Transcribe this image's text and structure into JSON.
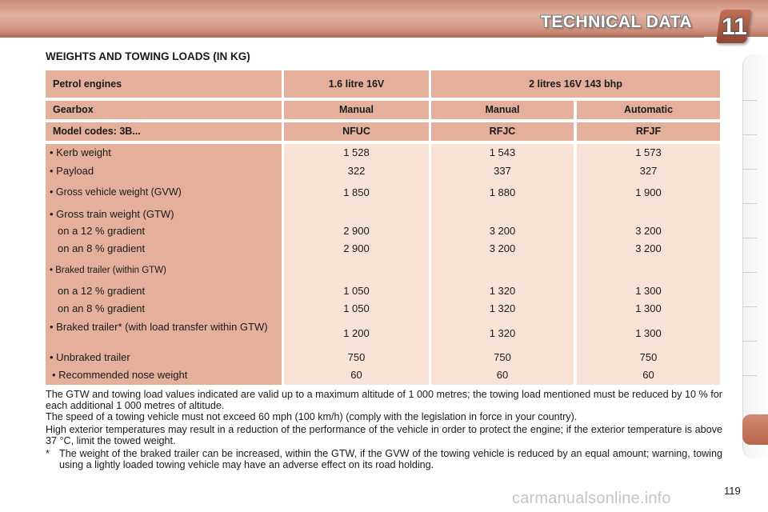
{
  "header": {
    "title": "TECHNICAL DATA",
    "chapter": "11"
  },
  "section_title": "WEIGHTS AND TOWING LOADS (IN KG)",
  "table": {
    "engine_row": {
      "label": "Petrol engines",
      "engine_a": "1.6 litre 16V",
      "engine_b": "2 litres 16V 143 bhp"
    },
    "gearbox_row": {
      "label": "Gearbox",
      "values": [
        "Manual",
        "Manual",
        "Automatic"
      ]
    },
    "model_row": {
      "label": "Model codes: 3B...",
      "values": [
        "NFUC",
        "RFJC",
        "RFJF"
      ]
    },
    "rows": [
      {
        "label": "• Kerb weight",
        "values": [
          "1 528",
          "1 543",
          "1 573"
        ]
      },
      {
        "label": "• Payload",
        "values": [
          "322",
          "337",
          "327"
        ]
      },
      {
        "label": "• Gross vehicle weight (GVW)",
        "values": [
          "1 850",
          "1 880",
          "1 900"
        ]
      },
      {
        "label": "• Gross train weight (GTW)",
        "values": [
          "",
          "",
          ""
        ]
      },
      {
        "label": "on a 12 % gradient",
        "values": [
          "2 900",
          "3 200",
          "3 200"
        ]
      },
      {
        "label": "on an 8 % gradient",
        "values": [
          "2 900",
          "3 200",
          "3 200"
        ]
      },
      {
        "label": "• Braked trailer (within GTW)",
        "values": [
          "",
          "",
          ""
        ]
      },
      {
        "label": "on a 12 % gradient",
        "values": [
          "1 050",
          "1 320",
          "1 300"
        ]
      },
      {
        "label": "on an 8 % gradient",
        "values": [
          "1 050",
          "1 320",
          "1 300"
        ]
      },
      {
        "label": "• Braked trailer* (with load transfer within GTW)",
        "values": [
          "1 200",
          "1 320",
          "1 300"
        ]
      },
      {
        "label": "• Unbraked trailer",
        "values": [
          "750",
          "750",
          "750"
        ]
      },
      {
        "label": "• Recommended nose weight",
        "values": [
          "60",
          "60",
          "60"
        ]
      }
    ]
  },
  "notes": {
    "p1": "The GTW and towing load values indicated are valid up to a maximum altitude of 1 000 metres; the towing load mentioned must be reduced by 10 % for each additional 1 000 metres of altitude.",
    "p2": "The speed of a towing vehicle must not exceed 60 mph (100 km/h) (comply with the legislation in force in your country).",
    "p3": "High exterior temperatures may result in a reduction of the performance of the vehicle in order to protect the engine; if the exterior temperature is above 37 °C, limit the towed weight.",
    "star": "*",
    "p4": "The weight of the braked trailer can be increased, within the GTW, if the GVW of the towing vehicle is reduced by an equal amount; warning, towing using a lightly loaded towing vehicle may have an adverse effect on its road holding."
  },
  "page_number": "119",
  "watermark": "carmanualsonline.info",
  "colors": {
    "header_band": "#d49b87",
    "label_col": "#e4b09c",
    "value_col": "#f9e3d7",
    "active_tab": "#c97760"
  }
}
